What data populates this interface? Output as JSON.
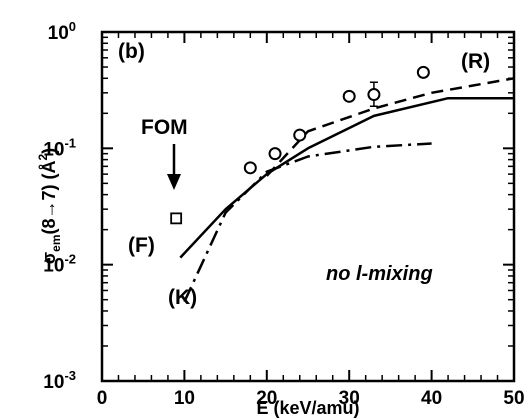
{
  "chart_data": {
    "type": "line",
    "x_axis": {
      "label": "E (keV/amu)",
      "lim": [
        0,
        50
      ],
      "ticks": [
        0,
        10,
        20,
        30,
        40,
        50
      ],
      "tick_labels": [
        "0",
        "10",
        "20",
        "30",
        "40",
        "50"
      ]
    },
    "y_axis": {
      "label_main": "σ",
      "label_sub": "em",
      "label_rest": "(8→7) (Å",
      "label_sup": "2",
      "label_end": ")",
      "scale": "log",
      "lim": [
        0.001,
        1
      ],
      "ticks": [
        {
          "value": 1,
          "base": "10",
          "exp": "0"
        },
        {
          "value": 0.1,
          "base": "10",
          "exp": "-1"
        },
        {
          "value": 0.01,
          "base": "10",
          "exp": "-2"
        },
        {
          "value": 0.001,
          "base": "10",
          "exp": "-3"
        }
      ]
    },
    "panel_label": "(b)",
    "condition_label": "no l-mixing",
    "series": [
      {
        "label": "(F)",
        "style": "solid",
        "points": [
          [
            9.5,
            0.0115
          ],
          [
            15,
            0.03
          ],
          [
            20,
            0.06
          ],
          [
            25,
            0.1
          ],
          [
            33,
            0.19
          ],
          [
            42,
            0.27
          ],
          [
            50,
            0.27
          ]
        ]
      },
      {
        "label": "(R)",
        "style": "dashed",
        "points": [
          [
            20,
            0.058
          ],
          [
            25,
            0.14
          ],
          [
            33,
            0.22
          ],
          [
            40,
            0.3
          ],
          [
            50,
            0.4
          ]
        ]
      },
      {
        "label": "(K)",
        "style": "dashdot",
        "points": [
          [
            10,
            0.0048
          ],
          [
            15,
            0.028
          ],
          [
            20,
            0.063
          ],
          [
            25,
            0.085
          ],
          [
            33,
            0.103
          ],
          [
            40,
            0.11
          ]
        ]
      }
    ],
    "experimental_points": [
      {
        "x": 18,
        "y": 0.068
      },
      {
        "x": 21,
        "y": 0.09
      },
      {
        "x": 24,
        "y": 0.13
      },
      {
        "x": 30,
        "y": 0.28
      },
      {
        "x": 33,
        "y": 0.29,
        "err_low": 0.23,
        "err_high": 0.37
      },
      {
        "x": 39,
        "y": 0.45
      }
    ],
    "fom_point": {
      "label": "FOM",
      "x": 9,
      "y": 0.025
    }
  }
}
